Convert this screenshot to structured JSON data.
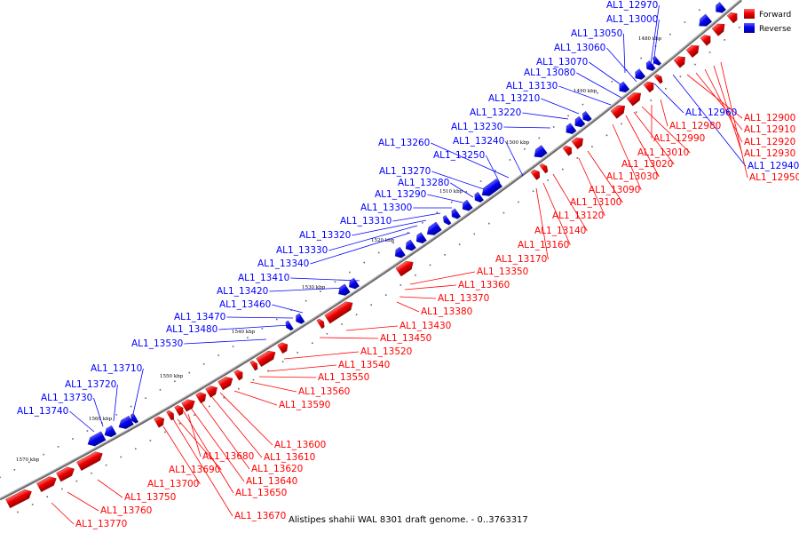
{
  "legend": {
    "forward_label": "Forward",
    "reverse_label": "Reverse",
    "forward_color": "#ff0000",
    "reverse_color": "#0000ff"
  },
  "caption": "Alistipes shahii WAL 8301 draft genome. - 0..3763317",
  "colors": {
    "forward": "#ff0000",
    "reverse": "#0000ff",
    "backbone": "#555555"
  },
  "ticks": [
    {
      "label": "1480 kbp"
    },
    {
      "label": "1490 kbp"
    },
    {
      "label": "1500 kbp"
    },
    {
      "label": "1510 kbp"
    },
    {
      "label": "1520 kbp"
    },
    {
      "label": "1530 kbp"
    },
    {
      "label": "1540 kbp"
    },
    {
      "label": "1550 kbp"
    },
    {
      "label": "1560 kbp"
    },
    {
      "label": "1570 kbp"
    }
  ],
  "reverse_labels": [
    "AL1_12970",
    "AL1_13000",
    "AL1_13050",
    "AL1_13060",
    "AL1_13070",
    "AL1_13080",
    "AL1_13130",
    "AL1_13210",
    "AL1_13220",
    "AL1_13230",
    "AL1_13240",
    "AL1_13260",
    "AL1_13250",
    "AL1_13270",
    "AL1_13280",
    "AL1_13290",
    "AL1_13300",
    "AL1_13310",
    "AL1_13320",
    "AL1_13330",
    "AL1_13340",
    "AL1_13410",
    "AL1_13420",
    "AL1_13460",
    "AL1_13470",
    "AL1_13480",
    "AL1_13530",
    "AL1_13710",
    "AL1_13720",
    "AL1_13730",
    "AL1_13740",
    "AL1_12960",
    "AL1_12940"
  ],
  "forward_labels": [
    "AL1_12900",
    "AL1_12910",
    "AL1_12920",
    "AL1_12930",
    "AL1_12950",
    "AL1_12980",
    "AL1_12990",
    "AL1_13010",
    "AL1_13020",
    "AL1_13030",
    "AL1_13090",
    "AL1_13100",
    "AL1_13120",
    "AL1_13140",
    "AL1_13160",
    "AL1_13170",
    "AL1_13350",
    "AL1_13360",
    "AL1_13370",
    "AL1_13380",
    "AL1_13430",
    "AL1_13450",
    "AL1_13520",
    "AL1_13540",
    "AL1_13550",
    "AL1_13560",
    "AL1_13590",
    "AL1_13600",
    "AL1_13610",
    "AL1_13620",
    "AL1_13640",
    "AL1_13650",
    "AL1_13670",
    "AL1_13680",
    "AL1_13690",
    "AL1_13700",
    "AL1_13750",
    "AL1_13760",
    "AL1_13770"
  ]
}
